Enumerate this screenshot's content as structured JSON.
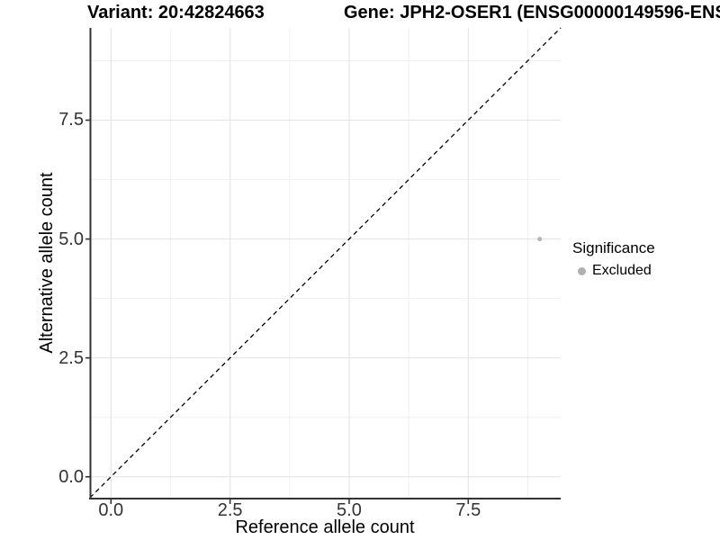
{
  "figure": {
    "background": "#ffffff"
  },
  "chart_data": {
    "type": "scatter",
    "titles": {
      "left": "Variant: 20:42824663",
      "right": "Gene: JPH2-OSER1 (ENSG00000149596-ENS"
    },
    "xlabel": "Reference allele count",
    "ylabel": "Alternative allele count",
    "xlim": [
      -0.44,
      9.44
    ],
    "ylim": [
      -0.44,
      9.44
    ],
    "xticks": [
      0,
      2.5,
      5,
      7.5
    ],
    "yticks": [
      0,
      2.5,
      5,
      7.5
    ],
    "xtick_labels": [
      "0.0",
      "2.5",
      "5.0",
      "7.5"
    ],
    "ytick_labels": [
      "0.0",
      "2.5",
      "5.0",
      "7.5"
    ],
    "minor_gridlines_x": [
      1.25,
      3.75,
      6.25,
      8.75
    ],
    "minor_gridlines_y": [
      1.25,
      3.75,
      6.25,
      8.75
    ],
    "grid": "major+minor",
    "points": [
      {
        "x": 9,
        "y": 5,
        "series": "Excluded"
      }
    ],
    "reference_line": {
      "kind": "y=x",
      "style": "dashed"
    },
    "legend": {
      "title": "Significance",
      "position": "right",
      "items": [
        {
          "label": "Excluded",
          "color": "#b0b0b0",
          "marker": "circle"
        }
      ]
    },
    "colors": {
      "grid_major": "#e6e6e6",
      "grid_minor": "#f1f1f1",
      "axis_line": "#333333",
      "tick_mark": "#333333",
      "tick_label": "#333333",
      "point": "#b4b4b4",
      "reference_line": "#000000"
    }
  }
}
